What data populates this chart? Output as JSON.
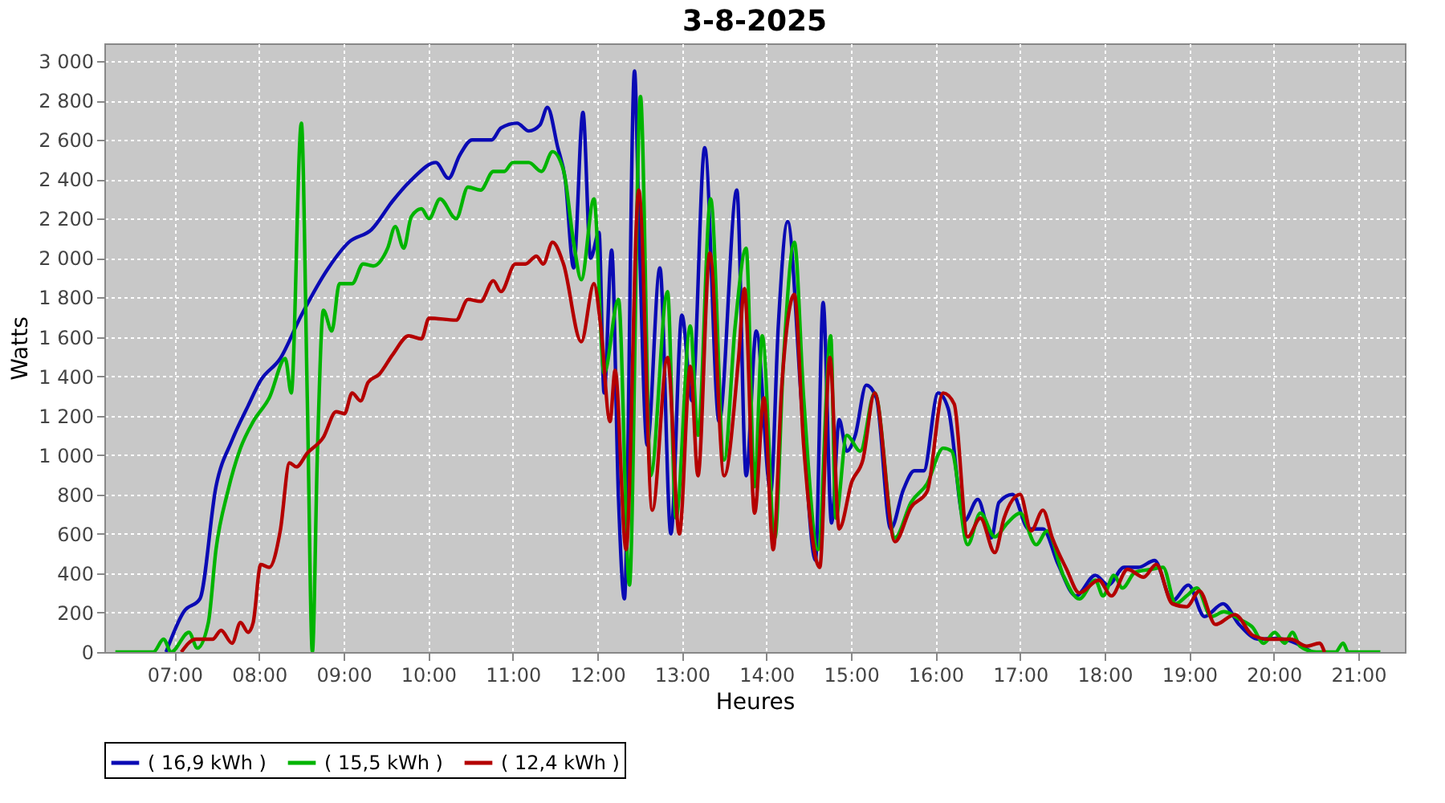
{
  "chart_data": {
    "type": "line",
    "title": "3-8-2025",
    "xlabel": "Heures",
    "ylabel": "Watts",
    "xlim": [
      6.17,
      21.55
    ],
    "ylim": [
      0,
      3090
    ],
    "xticks": [
      {
        "value": 7,
        "label": "07:00"
      },
      {
        "value": 8,
        "label": "08:00"
      },
      {
        "value": 9,
        "label": "09:00"
      },
      {
        "value": 10,
        "label": "10:00"
      },
      {
        "value": 11,
        "label": "11:00"
      },
      {
        "value": 12,
        "label": "12:00"
      },
      {
        "value": 13,
        "label": "13:00"
      },
      {
        "value": 14,
        "label": "14:00"
      },
      {
        "value": 15,
        "label": "15:00"
      },
      {
        "value": 16,
        "label": "16:00"
      },
      {
        "value": 17,
        "label": "17:00"
      },
      {
        "value": 18,
        "label": "18:00"
      },
      {
        "value": 19,
        "label": "19:00"
      },
      {
        "value": 20,
        "label": "20:00"
      },
      {
        "value": 21,
        "label": "21:00"
      }
    ],
    "yticks": [
      0,
      200,
      400,
      600,
      800,
      {
        "value": 1000,
        "label": "1 000"
      },
      {
        "value": 1200,
        "label": "1 200"
      },
      {
        "value": 1400,
        "label": "1 400"
      },
      {
        "value": 1600,
        "label": "1 600"
      },
      {
        "value": 1800,
        "label": "1 800"
      },
      {
        "value": 2000,
        "label": "2 000"
      },
      {
        "value": 2200,
        "label": "2 200"
      },
      {
        "value": 2400,
        "label": "2 400"
      },
      {
        "value": 2600,
        "label": "2 600"
      },
      {
        "value": 2800,
        "label": "2 800"
      },
      {
        "value": 3000,
        "label": "3 000"
      }
    ],
    "grid": true,
    "legend": "bottom",
    "series": [
      {
        "name": "( 16,9 kWh )",
        "color": "#0a0ab4",
        "x": [
          6.9,
          7.11,
          7.3,
          7.49,
          7.68,
          7.87,
          8.02,
          8.25,
          8.5,
          8.82,
          9.06,
          9.33,
          9.58,
          9.82,
          10.09,
          10.24,
          10.37,
          10.52,
          10.75,
          10.86,
          11.05,
          11.19,
          11.32,
          11.41,
          11.53,
          11.62,
          11.72,
          11.83,
          11.92,
          12.02,
          12.08,
          12.17,
          12.25,
          12.32,
          12.44,
          12.49,
          12.59,
          12.74,
          12.87,
          13.0,
          13.12,
          13.27,
          13.44,
          13.65,
          13.76,
          13.88,
          14.05,
          14.14,
          14.25,
          14.42,
          14.58,
          14.67,
          14.77,
          14.86,
          14.95,
          15.05,
          15.18,
          15.3,
          15.47,
          15.62,
          15.75,
          15.86,
          16.03,
          16.15,
          16.34,
          16.5,
          16.66,
          16.75,
          16.91,
          17.1,
          17.27,
          17.45,
          17.66,
          17.89,
          18.04,
          18.23,
          18.4,
          18.59,
          18.8,
          18.99,
          19.18,
          19.4,
          19.59,
          19.82,
          20.03,
          20.26,
          20.45
        ],
        "values": [
          0,
          205,
          270,
          840,
          1075,
          1250,
          1380,
          1490,
          1710,
          1950,
          2080,
          2145,
          2290,
          2405,
          2485,
          2405,
          2520,
          2600,
          2600,
          2660,
          2685,
          2645,
          2675,
          2765,
          2565,
          2400,
          1950,
          2740,
          2000,
          2130,
          1315,
          2040,
          785,
          270,
          2950,
          2210,
          1050,
          1950,
          600,
          1710,
          1275,
          2560,
          1170,
          2345,
          895,
          1630,
          815,
          1655,
          2185,
          1235,
          465,
          1775,
          655,
          1180,
          1020,
          1100,
          1355,
          1290,
          625,
          825,
          920,
          920,
          1315,
          1235,
          665,
          775,
          580,
          760,
          800,
          625,
          625,
          445,
          285,
          390,
          340,
          430,
          430,
          465,
          260,
          340,
          180,
          245,
          140,
          65,
          70,
          45,
          0
        ]
      },
      {
        "name": "( 15,5 kWh )",
        "color": "#00b400",
        "x": [
          6.3,
          6.75,
          6.87,
          6.96,
          7.17,
          7.27,
          7.4,
          7.49,
          7.63,
          7.78,
          7.93,
          8.12,
          8.31,
          8.38,
          8.5,
          8.57,
          8.63,
          8.69,
          8.76,
          8.86,
          8.95,
          9.1,
          9.23,
          9.35,
          9.52,
          9.61,
          9.71,
          9.8,
          9.92,
          10.01,
          10.14,
          10.33,
          10.47,
          10.62,
          10.77,
          10.9,
          11.0,
          11.19,
          11.34,
          11.47,
          11.6,
          11.72,
          11.81,
          11.96,
          12.08,
          12.25,
          12.38,
          12.51,
          12.63,
          12.83,
          12.93,
          13.1,
          13.19,
          13.34,
          13.5,
          13.63,
          13.76,
          13.86,
          13.95,
          14.1,
          14.2,
          14.33,
          14.44,
          14.61,
          14.76,
          14.82,
          14.95,
          15.11,
          15.28,
          15.52,
          15.71,
          15.9,
          16.09,
          16.19,
          16.38,
          16.53,
          16.7,
          16.85,
          17.0,
          17.19,
          17.32,
          17.51,
          17.7,
          17.89,
          17.98,
          18.11,
          18.21,
          18.36,
          18.55,
          18.69,
          18.84,
          18.97,
          19.09,
          19.26,
          19.41,
          19.6,
          19.75,
          19.88,
          20.01,
          20.13,
          20.22,
          20.31,
          20.5,
          20.73,
          20.82,
          20.88,
          21.26
        ],
        "values": [
          0,
          0,
          65,
          0,
          100,
          20,
          150,
          520,
          815,
          1035,
          1170,
          1290,
          1490,
          1315,
          2685,
          1290,
          0,
          1020,
          1735,
          1630,
          1870,
          1870,
          1970,
          1960,
          2050,
          2160,
          2050,
          2210,
          2250,
          2200,
          2300,
          2200,
          2360,
          2345,
          2440,
          2440,
          2485,
          2485,
          2440,
          2540,
          2445,
          2080,
          1890,
          2300,
          1415,
          1790,
          340,
          2820,
          895,
          1830,
          680,
          1655,
          1100,
          2300,
          975,
          1655,
          2050,
          840,
          1605,
          580,
          1470,
          2080,
          1290,
          520,
          1605,
          680,
          1100,
          1020,
          1315,
          580,
          760,
          855,
          1035,
          1020,
          545,
          705,
          585,
          655,
          705,
          545,
          615,
          390,
          270,
          365,
          285,
          390,
          325,
          405,
          420,
          430,
          245,
          285,
          325,
          180,
          205,
          165,
          125,
          45,
          100,
          45,
          100,
          30,
          0,
          0,
          45,
          0,
          0
        ]
      },
      {
        "name": "( 12,4 kWh )",
        "color": "#b40000",
        "x": [
          7.08,
          7.25,
          7.45,
          7.55,
          7.68,
          7.78,
          7.87,
          7.93,
          8.02,
          8.12,
          8.25,
          8.36,
          8.44,
          8.57,
          8.76,
          8.91,
          9.01,
          9.1,
          9.2,
          9.29,
          9.42,
          9.58,
          9.77,
          9.92,
          10.01,
          10.33,
          10.47,
          10.62,
          10.77,
          10.86,
          11.03,
          11.15,
          11.28,
          11.36,
          11.47,
          11.6,
          11.81,
          11.96,
          12.04,
          12.15,
          12.21,
          12.34,
          12.49,
          12.65,
          12.83,
          12.97,
          13.1,
          13.19,
          13.33,
          13.5,
          13.67,
          13.74,
          13.86,
          13.97,
          14.08,
          14.18,
          14.33,
          14.44,
          14.63,
          14.75,
          14.86,
          15.01,
          15.14,
          15.28,
          15.52,
          15.71,
          15.9,
          16.09,
          16.22,
          16.38,
          16.53,
          16.7,
          16.81,
          17.0,
          17.13,
          17.27,
          17.38,
          17.55,
          17.7,
          17.93,
          18.08,
          18.27,
          18.46,
          18.61,
          18.8,
          18.97,
          19.12,
          19.31,
          19.54,
          19.75,
          19.94,
          20.2,
          20.39,
          20.54,
          20.6
        ],
        "values": [
          0,
          65,
          65,
          110,
          45,
          150,
          100,
          150,
          445,
          430,
          615,
          960,
          940,
          1010,
          1090,
          1220,
          1210,
          1315,
          1275,
          1370,
          1410,
          1510,
          1605,
          1590,
          1695,
          1685,
          1790,
          1780,
          1885,
          1830,
          1970,
          1970,
          2010,
          1970,
          2080,
          1970,
          1575,
          1870,
          1655,
          1170,
          1430,
          520,
          2345,
          720,
          1495,
          600,
          1450,
          895,
          2025,
          895,
          1490,
          1845,
          705,
          1290,
          520,
          1340,
          1815,
          1050,
          430,
          1495,
          625,
          865,
          975,
          1315,
          560,
          735,
          815,
          1315,
          1260,
          585,
          680,
          505,
          680,
          800,
          615,
          720,
          580,
          420,
          300,
          365,
          285,
          420,
          380,
          445,
          245,
          230,
          310,
          140,
          190,
          85,
          65,
          65,
          30,
          45,
          0
        ]
      }
    ]
  }
}
